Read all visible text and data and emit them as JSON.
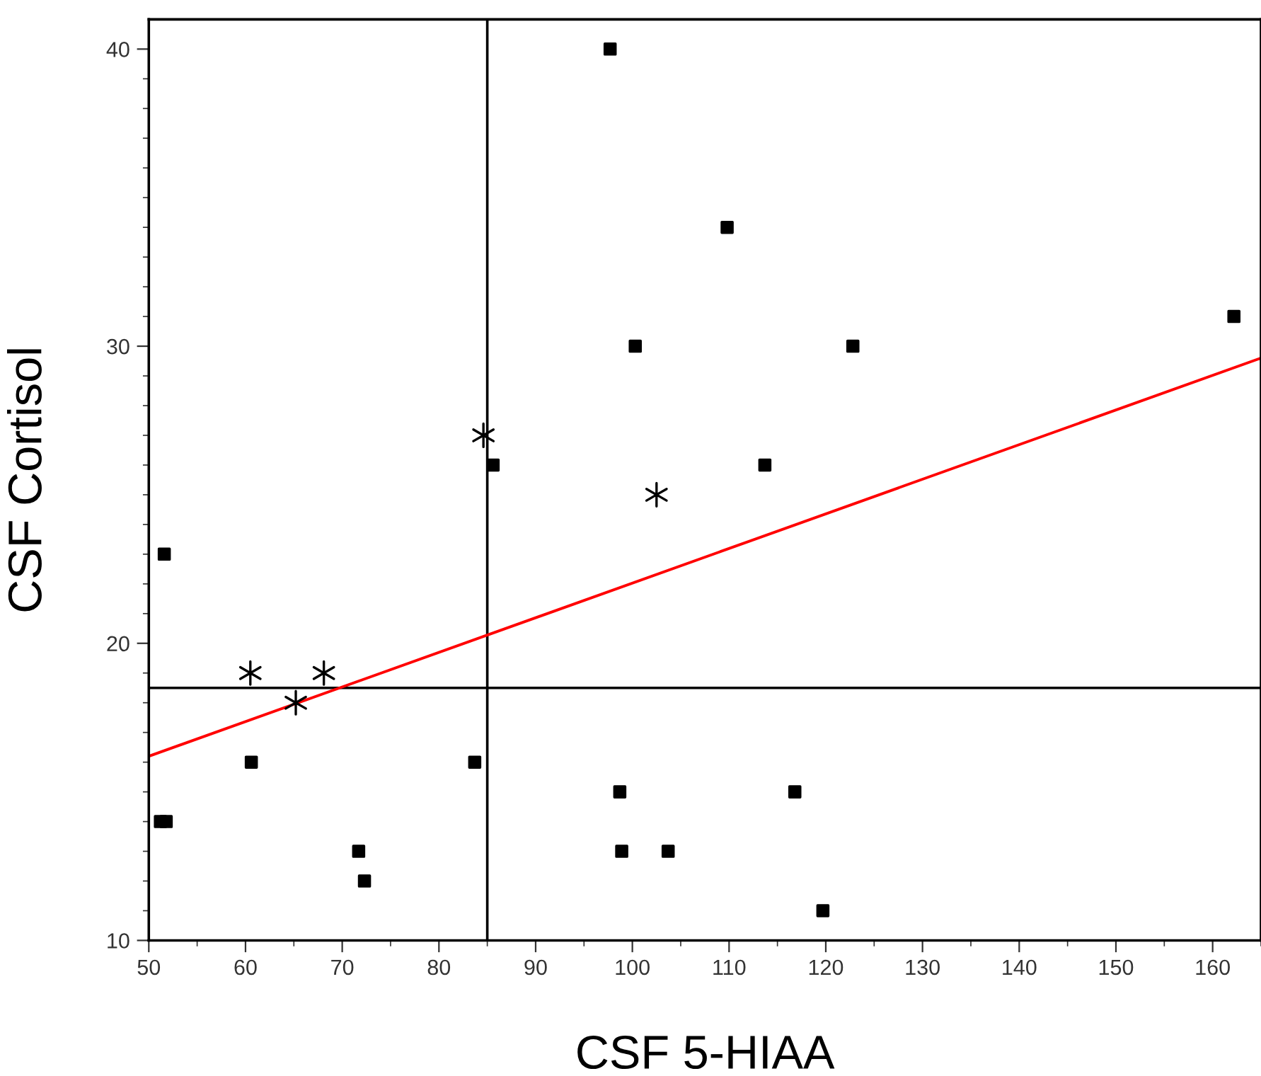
{
  "chart_data": {
    "type": "scatter",
    "xlabel": "CSF 5-HIAA",
    "ylabel": "CSF Cortisol",
    "xlim": [
      50,
      165
    ],
    "ylim": [
      10,
      41
    ],
    "xticks": [
      50,
      {
        "value": 55,
        "label": null
      },
      60,
      {
        "value": 65,
        "label": null
      },
      70,
      {
        "value": 75,
        "label": null
      },
      80,
      {
        "value": 85,
        "label": null
      },
      90,
      {
        "value": 95,
        "label": null
      },
      100,
      {
        "value": 105,
        "label": null
      },
      110,
      {
        "value": 115,
        "label": null
      },
      120,
      {
        "value": 125,
        "label": null
      },
      130,
      {
        "value": 135,
        "label": null
      },
      140,
      {
        "value": 145,
        "label": null
      },
      150,
      {
        "value": 155,
        "label": null
      },
      160,
      {
        "value": 165,
        "label": null
      }
    ],
    "yticks": [
      10,
      {
        "value": 11,
        "label": null
      },
      {
        "value": 12,
        "label": null
      },
      {
        "value": 13,
        "label": null
      },
      {
        "value": 14,
        "label": null
      },
      {
        "value": 15,
        "label": null
      },
      {
        "value": 16,
        "label": null
      },
      {
        "value": 17,
        "label": null
      },
      {
        "value": 18,
        "label": null
      },
      {
        "value": 19,
        "label": null
      },
      20,
      {
        "value": 21,
        "label": null
      },
      {
        "value": 22,
        "label": null
      },
      {
        "value": 23,
        "label": null
      },
      {
        "value": 24,
        "label": null
      },
      {
        "value": 25,
        "label": null
      },
      {
        "value": 26,
        "label": null
      },
      {
        "value": 27,
        "label": null
      },
      {
        "value": 28,
        "label": null
      },
      {
        "value": 29,
        "label": null
      },
      30,
      {
        "value": 31,
        "label": null
      },
      {
        "value": 32,
        "label": null
      },
      {
        "value": 33,
        "label": null
      },
      {
        "value": 34,
        "label": null
      },
      {
        "value": 35,
        "label": null
      },
      {
        "value": 36,
        "label": null
      },
      {
        "value": 37,
        "label": null
      },
      {
        "value": 38,
        "label": null
      },
      {
        "value": 39,
        "label": null
      },
      40
    ],
    "grid": false,
    "legend": false,
    "series": [
      {
        "marker": "square",
        "color": "#000000",
        "x": [
          97.7,
          109.8,
          100.3,
          122.8,
          162.2,
          113.7,
          85.6,
          51.6,
          60.6,
          83.7,
          98.7,
          116.8,
          51.2,
          51.8,
          71.7,
          72.3,
          98.9,
          103.7,
          119.7
        ],
        "values": [
          40,
          34,
          30,
          30,
          31,
          26,
          26,
          23,
          16,
          16,
          15,
          15,
          14,
          14,
          13,
          12,
          13,
          13,
          11
        ]
      },
      {
        "marker": "cross",
        "color": "#000000",
        "x": [
          84.6,
          102.5,
          60.5,
          68.1,
          65.2
        ],
        "values": [
          27,
          25,
          19,
          19,
          18
        ]
      },
      {
        "type": "line",
        "marker": "none",
        "line_style": "solid",
        "color": "#ff0000",
        "x": [
          50,
          165
        ],
        "values": [
          16.2,
          29.6
        ]
      }
    ],
    "ref_lines": [
      {
        "axis": "x",
        "value": 85,
        "color": "#000000",
        "line_style": "solid"
      },
      {
        "axis": "y",
        "value": 18.5,
        "color": "#000000",
        "line_style": "solid"
      }
    ]
  }
}
